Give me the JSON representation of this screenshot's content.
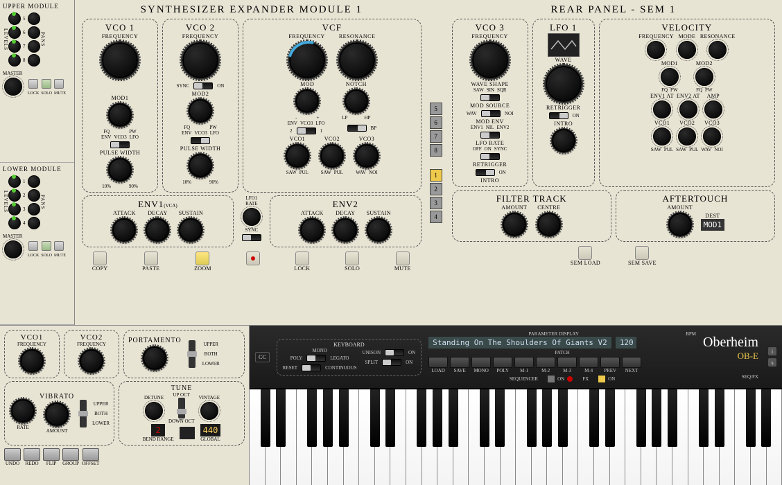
{
  "upperModule": {
    "title": "UPPER MODULE",
    "levels": "LEVELS",
    "pans": "PANS",
    "nums": [
      "5",
      "6",
      "7",
      "8"
    ],
    "master": "MASTER",
    "btns": [
      "LOCK",
      "SOLO",
      "MUTE"
    ]
  },
  "lowerModule": {
    "title": "LOWER MODULE",
    "nums": [
      "1",
      "2",
      "3",
      "4"
    ],
    "master": "MASTER",
    "btns": [
      "LOCK",
      "SOLO",
      "MUTE"
    ]
  },
  "sem1": {
    "title": "SYNTHESIZER EXPANDER MODULE 1",
    "vco1": {
      "title": "VCO 1",
      "freq": "FREQUENCY",
      "mod": "MOD1",
      "fq": "FQ",
      "pw": "PW",
      "env": "ENV",
      "vco3": "VCO3",
      "lfo": "LFO",
      "pulsewidth": "PULSE WIDTH",
      "p10": "10%",
      "p90": "90%"
    },
    "vco2": {
      "title": "VCO 2",
      "freq": "FREQUENCY",
      "sync": "SYNC",
      "on": "ON",
      "mod": "MOD2",
      "fq": "FQ",
      "pw": "PW",
      "env": "ENV",
      "vco3": "VCO3",
      "lfo": "LFO",
      "pulsewidth": "PULSE WIDTH",
      "p10": "10%",
      "p90": "90%"
    },
    "vcf": {
      "title": "VCF",
      "freq": "FREQUENCY",
      "resonance": "RESONANCE",
      "mod": "MOD",
      "notch": "NOTCH",
      "minus": "-",
      "plus": "+",
      "lp": "LP",
      "hp": "HP",
      "env": "ENV",
      "vco3": "VCO3",
      "lfo": "LFO",
      "n1": "1",
      "n2": "2",
      "bp": "BP",
      "vco1": "VCO1",
      "vco2": "VCO2",
      "vco3b": "VCO3",
      "saw": "SAW",
      "pul": "PUL",
      "wav": "WAV",
      "noi": "NOI"
    },
    "env1": {
      "title": "ENV1",
      "vca": "(VCA)",
      "attack": "ATTACK",
      "decay": "DECAY",
      "sustain": "SUSTAIN"
    },
    "env2": {
      "title": "ENV2",
      "attack": "ATTACK",
      "decay": "DECAY",
      "sustain": "SUSTAIN"
    },
    "lfoRate": "LFO1\nRATE",
    "syncLbl": "SYNC",
    "bottomBtns": [
      "COPY",
      "PASTE",
      "ZOOM",
      "",
      "LOCK",
      "SOLO",
      "MUTE"
    ]
  },
  "voices": {
    "top": [
      "5",
      "6",
      "7",
      "8"
    ],
    "bottom": [
      "1",
      "2",
      "3",
      "4"
    ],
    "active": "1"
  },
  "rear": {
    "title": "REAR PANEL - SEM 1",
    "vco3": {
      "title": "VCO 3",
      "freq": "FREQUENCY",
      "waveShape": "WAVE SHAPE",
      "saw": "SAW",
      "sin": "SIN",
      "sqr": "SQR",
      "modSrc": "MOD SOURCE",
      "wav": "WAV",
      "noi": "NOI",
      "modEnv": "MOD ENV",
      "env1": "ENV1",
      "nil": "NIL",
      "env2": "ENV2",
      "lfoRate": "LFO RATE",
      "off": "OFF",
      "on": "ON",
      "sync": "SYNC",
      "retrigger": "RETRIGGER",
      "intro": "INTRO"
    },
    "lfo1": {
      "title": "LFO 1",
      "wave": "WAVE",
      "retrigger": "RETRIGGER",
      "on": "ON",
      "intro": "INTRO"
    },
    "velocity": {
      "title": "VELOCITY",
      "freq": "FREQUENCY",
      "mode": "MODE",
      "resonance": "RESONANCE",
      "mod1": "MOD1",
      "mod2": "MOD2",
      "fq": "FQ",
      "pw": "PW",
      "env1at": "ENV1 AT",
      "env2at": "ENV2 AT",
      "amp": "AMP",
      "vco1": "VCO1",
      "vco2": "VCO2",
      "vco3": "VCO3",
      "saw": "SAW",
      "pul": "PUL",
      "wav": "WAV",
      "noi": "NOI"
    },
    "filterTrack": {
      "title": "FILTER TRACK",
      "amount": "AMOUNT",
      "centre": "CENTRE"
    },
    "aftertouch": {
      "title": "AFTERTOUCH",
      "amount": "AMOUNT",
      "dest": "DEST",
      "destVal": "MOD1"
    },
    "semLoad": "SEM LOAD",
    "semSave": "SEM SAVE"
  },
  "bottomLeft": {
    "vco1": {
      "title": "VCO1",
      "freq": "FREQUENCY"
    },
    "vco2": {
      "title": "VCO2",
      "freq": "FREQUENCY"
    },
    "portamento": {
      "title": "PORTAMENTO",
      "upper": "UPPER",
      "both": "BOTH",
      "lower": "LOWER"
    },
    "vibrato": {
      "title": "VIBRATO",
      "rate": "RATE",
      "amount": "AMOUNT",
      "upper": "UPPER",
      "both": "BOTH",
      "lower": "LOWER"
    },
    "tune": {
      "title": "TUNE",
      "detune": "DETUNE",
      "upoct": "UP OCT",
      "downoct": "DOWN OCT",
      "vintage": "VINTAGE",
      "bendRange": "BEND RANGE",
      "bendVal": "2",
      "global": "GLOBAL",
      "globalVal": "440"
    },
    "btns": [
      "UNDO",
      "REDO",
      "FLIP",
      "GROUP",
      "OFFSET"
    ]
  },
  "darkBar": {
    "cc": "CC",
    "keyboard": "KEYBOARD",
    "mono": "MONO",
    "poly": "POLY",
    "legato": "LEGATO",
    "unison": "UNISON",
    "on": "ON",
    "split": "SPLIT",
    "reset": "RESET",
    "continuous": "CONTINUOUS",
    "paramDisplay": "PARAMETER DISPLAY",
    "patchName": "Standing On The Shoulders Of Giants V2",
    "bpm": "BPM",
    "bpmVal": "120",
    "patch": "PATCH",
    "patchBtns": [
      "LOAD",
      "SAVE",
      "MONO",
      "POLY",
      "M-1",
      "M-2",
      "M-3",
      "M-4",
      "PREV",
      "NEXT"
    ],
    "sequencer": "SEQUENCER",
    "fx": "FX",
    "seqfx": "SEQ/FX",
    "brand": "Oberheim",
    "model": "OB-E"
  }
}
